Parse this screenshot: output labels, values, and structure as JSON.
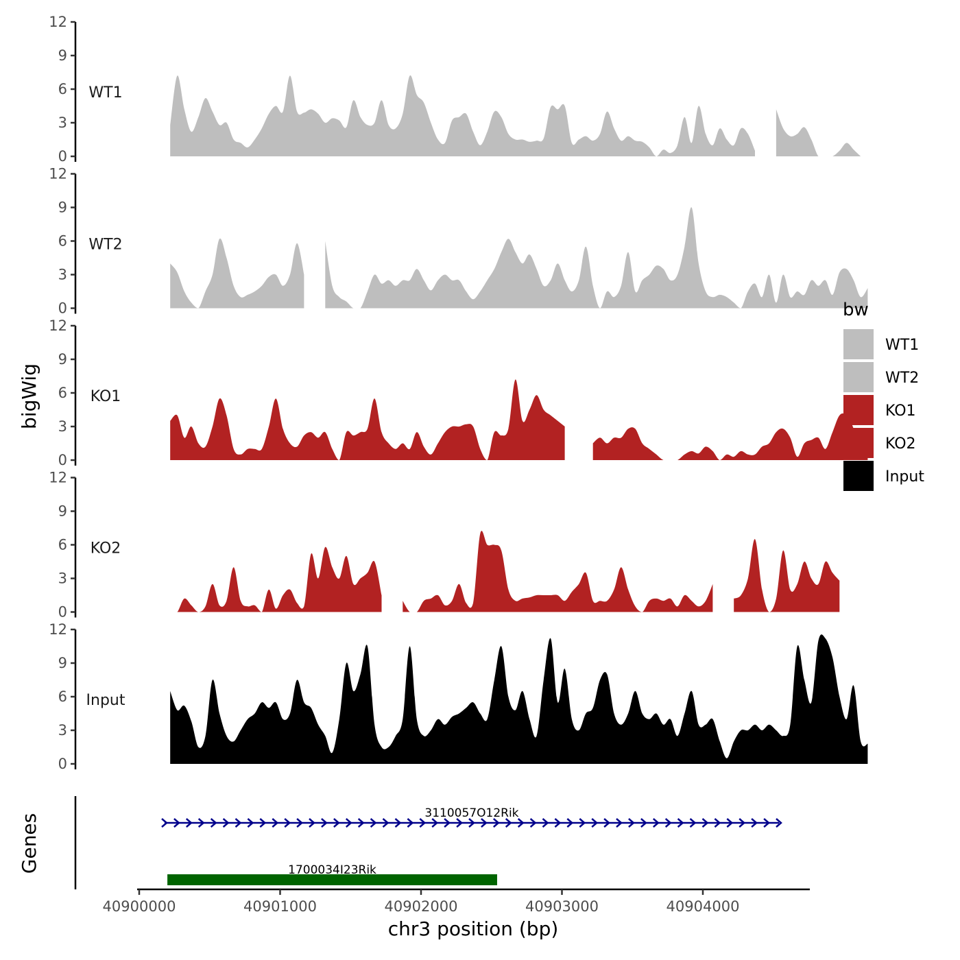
{
  "chart_data": {
    "type": "area",
    "title": "",
    "ylabel": "bigWig",
    "xlabel": "chr3 position (bp)",
    "xlim": [
      40899560,
      40904800
    ],
    "ylim": [
      0,
      12
    ],
    "yticks": [
      0,
      3,
      6,
      9,
      12
    ],
    "yticks_label": [
      "0",
      "3",
      "6",
      "9",
      "12"
    ],
    "xticks": [
      40900000,
      40901000,
      40902000,
      40903000,
      40904000
    ],
    "xticks_label": [
      "40900000",
      "40901000",
      "40902000",
      "40903000",
      "40904000"
    ],
    "x_start": 40900220,
    "x_step": 50,
    "tracks": [
      {
        "name": "WT1",
        "color": "#bebebe",
        "values": [
          2.8,
          7.2,
          4.2,
          2.2,
          3.5,
          5.2,
          4.0,
          2.8,
          3.0,
          1.5,
          1.2,
          0.8,
          1.5,
          2.5,
          3.8,
          4.5,
          4.0,
          7.2,
          4.0,
          3.9,
          4.2,
          3.8,
          3.0,
          3.4,
          3.2,
          2.6,
          5.0,
          3.5,
          2.8,
          3.0,
          5.0,
          2.8,
          2.5,
          3.8,
          7.2,
          5.5,
          4.8,
          3.0,
          1.5,
          1.2,
          3.2,
          3.5,
          3.8,
          2.2,
          1.0,
          2.2,
          4.0,
          3.5,
          2.0,
          1.5,
          1.5,
          1.3,
          1.4,
          1.6,
          4.4,
          4.2,
          4.5,
          1.2,
          1.5,
          1.8,
          1.4,
          2.0,
          4.0,
          2.5,
          1.4,
          1.8,
          1.4,
          1.3,
          0.8,
          0.0,
          0.6,
          0.3,
          1.0,
          3.5,
          1.2,
          4.5,
          2.0,
          1.0,
          2.5,
          1.5,
          1.0,
          2.5,
          2.0,
          0.5,
          2.5,
          3.5,
          4.2,
          2.5,
          1.8,
          2.0,
          2.6,
          1.5,
          0.0,
          0.0,
          0.0,
          0.5,
          1.2,
          0.6,
          0.0
        ],
        "gaps": [
          [
            40904380,
            40904500
          ]
        ]
      },
      {
        "name": "WT2",
        "color": "#bebebe",
        "values": [
          4.0,
          3.2,
          1.5,
          0.5,
          0.0,
          1.5,
          3.0,
          6.2,
          4.5,
          2.0,
          1.0,
          1.2,
          1.5,
          2.0,
          2.8,
          3.0,
          2.0,
          3.0,
          5.8,
          3.0,
          2.5,
          3.5,
          6.0,
          2.0,
          1.0,
          0.6,
          0.0,
          0.0,
          1.5,
          3.0,
          2.2,
          2.5,
          2.0,
          2.5,
          2.5,
          3.5,
          2.5,
          1.6,
          2.5,
          3.0,
          2.5,
          2.5,
          1.5,
          0.8,
          1.5,
          2.5,
          3.5,
          5.0,
          6.2,
          5.0,
          4.0,
          4.8,
          3.5,
          2.0,
          2.5,
          4.0,
          2.5,
          1.5,
          2.5,
          5.5,
          2.0,
          0.0,
          1.5,
          1.0,
          2.0,
          5.0,
          1.5,
          2.5,
          3.0,
          3.8,
          3.5,
          2.5,
          3.0,
          5.5,
          9.0,
          4.0,
          1.5,
          1.0,
          1.2,
          1.0,
          0.5,
          0.0,
          1.5,
          2.2,
          1.0,
          3.0,
          0.5,
          3.0,
          1.0,
          1.5,
          1.2,
          2.5,
          2.0,
          2.5,
          1.2,
          3.2,
          3.5,
          2.5,
          1.0,
          1.8
        ],
        "gaps": [
          [
            40901200,
            40901300
          ]
        ]
      },
      {
        "name": "KO1",
        "color": "#b22222",
        "values": [
          3.5,
          4.0,
          2.0,
          3.0,
          1.5,
          1.2,
          3.0,
          5.5,
          4.0,
          1.0,
          0.5,
          1.0,
          1.0,
          1.0,
          3.0,
          5.5,
          2.8,
          1.5,
          1.2,
          2.2,
          2.5,
          2.0,
          2.5,
          1.0,
          0.0,
          2.5,
          2.2,
          2.5,
          2.8,
          5.5,
          2.5,
          1.5,
          1.0,
          1.5,
          1.0,
          2.5,
          1.2,
          0.5,
          1.5,
          2.5,
          3.0,
          3.0,
          3.2,
          3.0,
          1.0,
          0.0,
          2.5,
          2.2,
          2.8,
          7.2,
          3.5,
          4.5,
          5.8,
          4.5,
          4.0,
          3.5,
          3.0,
          3.5,
          2.5,
          2.5,
          1.5,
          2.0,
          1.5,
          2.0,
          2.0,
          2.8,
          2.8,
          1.5,
          1.0,
          0.5,
          0.0,
          0.0,
          0.0,
          0.5,
          0.8,
          0.6,
          1.2,
          0.8,
          0.0,
          0.5,
          0.3,
          0.8,
          0.5,
          0.5,
          1.2,
          1.5,
          2.5,
          2.8,
          2.0,
          0.3,
          1.5,
          1.8,
          2.0,
          1.0,
          2.5,
          4.0,
          4.0,
          2.8,
          0.5,
          1.5
        ],
        "gaps": [
          [
            40903060,
            40903180
          ]
        ]
      },
      {
        "name": "KO2",
        "color": "#b22222",
        "values": [
          0.0,
          0.0,
          1.2,
          0.6,
          0.0,
          0.5,
          2.5,
          0.6,
          1.0,
          4.0,
          1.0,
          0.5,
          0.6,
          0.0,
          2.0,
          0.3,
          1.5,
          2.0,
          0.8,
          0.5,
          5.2,
          3.0,
          5.8,
          4.0,
          3.0,
          5.0,
          2.5,
          3.0,
          3.5,
          4.5,
          1.5,
          0.6,
          2.0,
          1.0,
          0.0,
          0.0,
          1.0,
          1.2,
          1.5,
          0.6,
          1.0,
          2.5,
          0.8,
          0.8,
          7.0,
          6.0,
          6.0,
          5.5,
          2.0,
          1.0,
          1.2,
          1.3,
          1.5,
          1.5,
          1.5,
          1.5,
          1.0,
          1.8,
          2.5,
          3.5,
          1.0,
          1.0,
          1.0,
          2.0,
          4.0,
          2.0,
          0.5,
          0.0,
          1.0,
          1.2,
          1.0,
          1.2,
          0.5,
          1.5,
          1.0,
          0.5,
          1.0,
          2.5,
          1.0,
          0.5,
          1.2,
          1.5,
          3.0,
          6.5,
          2.0,
          0.0,
          1.2,
          5.5,
          2.0,
          2.5,
          4.5,
          3.0,
          2.5,
          4.5,
          3.5,
          2.8
        ],
        "gaps": [
          [
            40901730,
            40901850
          ],
          [
            40904100,
            40904180
          ]
        ]
      },
      {
        "name": "Input",
        "color": "#000000",
        "values": [
          6.5,
          4.8,
          5.2,
          3.8,
          1.5,
          2.5,
          7.5,
          4.5,
          2.5,
          2.0,
          3.0,
          4.0,
          4.5,
          5.5,
          5.0,
          5.5,
          4.0,
          4.5,
          7.5,
          5.5,
          5.0,
          3.5,
          2.5,
          1.0,
          4.0,
          9.0,
          6.5,
          8.0,
          10.5,
          3.5,
          1.5,
          1.5,
          2.5,
          4.0,
          10.5,
          4.0,
          2.5,
          3.0,
          4.0,
          3.5,
          4.2,
          4.5,
          5.0,
          5.5,
          4.5,
          4.0,
          7.5,
          10.5,
          6.0,
          4.8,
          6.5,
          4.0,
          2.5,
          7.5,
          11.2,
          5.5,
          8.5,
          4.0,
          3.0,
          4.5,
          5.0,
          7.5,
          8.0,
          4.5,
          3.5,
          4.5,
          6.5,
          4.5,
          4.0,
          4.5,
          3.5,
          4.0,
          2.5,
          4.5,
          6.5,
          3.5,
          3.5,
          4.0,
          2.0,
          0.5,
          2.0,
          3.0,
          3.0,
          3.5,
          3.0,
          3.5,
          3.0,
          2.5,
          3.5,
          10.5,
          7.5,
          5.5,
          11.0,
          11.2,
          9.5,
          6.0,
          4.0,
          7.0,
          2.0,
          1.8
        ]
      }
    ],
    "genes": [
      {
        "name": "3110057O12Rik",
        "start": 40900180,
        "end": 40904540,
        "strand": "+",
        "color": "#00008b",
        "style": "line"
      },
      {
        "name": "1700034I23Rik",
        "start": 40900200,
        "end": 40902540,
        "strand": "",
        "color": "#006400",
        "style": "block"
      }
    ],
    "genes_label": "Genes",
    "legend": {
      "title": "bw",
      "position": "right",
      "items": [
        {
          "label": "WT1",
          "color": "#bebebe"
        },
        {
          "label": "WT2",
          "color": "#bebebe"
        },
        {
          "label": "KO1",
          "color": "#b22222"
        },
        {
          "label": "KO2",
          "color": "#b22222"
        },
        {
          "label": "Input",
          "color": "#000000"
        }
      ]
    }
  }
}
